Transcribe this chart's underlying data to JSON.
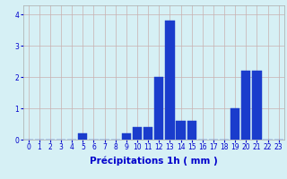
{
  "hours": [
    0,
    1,
    2,
    3,
    4,
    5,
    6,
    7,
    8,
    9,
    10,
    11,
    12,
    13,
    14,
    15,
    16,
    17,
    18,
    19,
    20,
    21,
    22,
    23
  ],
  "values": [
    0,
    0,
    0,
    0,
    0,
    0.2,
    0,
    0,
    0,
    0.2,
    0.4,
    0.4,
    2.0,
    3.8,
    0.6,
    0.6,
    0,
    0,
    0,
    1.0,
    2.2,
    2.2,
    0,
    0
  ],
  "bar_color": "#1a3ccc",
  "bar_edge_color": "#1a3ccc",
  "background_color": "#d6f0f5",
  "grid_color": "#c8b0b0",
  "text_color": "#0000cc",
  "xlabel": "Précipitations 1h ( mm )",
  "ylim": [
    0,
    4.3
  ],
  "yticks": [
    0,
    1,
    2,
    3,
    4
  ],
  "xlim": [
    -0.5,
    23.5
  ],
  "tick_fontsize": 5.5,
  "label_fontsize": 7.5
}
